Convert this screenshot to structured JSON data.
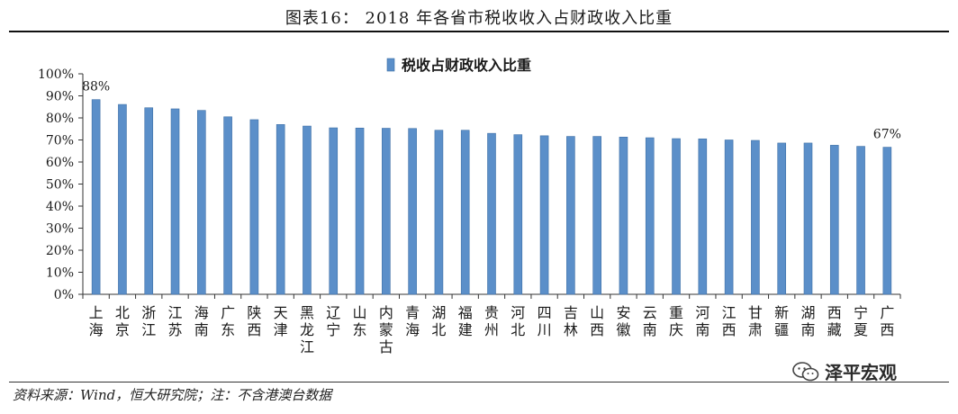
{
  "figure": {
    "title": "图表16：    2018 年各省市税收收入占财政收入比重",
    "source": "资料来源：Wind，恒大研究院；注：不含港澳台数据",
    "watermark": "泽平宏观"
  },
  "colors": {
    "bar": "#5b8fc9",
    "bar_edge": "#3d6fa6",
    "axis": "#333333"
  },
  "chart_data": {
    "type": "bar",
    "legend": "税收占财政收入比重",
    "legend_position": "top-center",
    "ylim": [
      0,
      100
    ],
    "yticks": [
      "0%",
      "10%",
      "20%",
      "30%",
      "40%",
      "50%",
      "60%",
      "70%",
      "80%",
      "90%",
      "100%"
    ],
    "categories": [
      "上海",
      "北京",
      "浙江",
      "江苏",
      "海南",
      "广东",
      "陕西",
      "天津",
      "黑龙江",
      "辽宁",
      "山东",
      "内蒙古",
      "青海",
      "湖北",
      "福建",
      "贵州",
      "河北",
      "四川",
      "吉林",
      "山西",
      "安徽",
      "云南",
      "重庆",
      "河南",
      "江西",
      "甘肃",
      "新疆",
      "湖南",
      "西藏",
      "宁夏",
      "广西"
    ],
    "values": [
      88.3,
      86.1,
      84.6,
      84.1,
      83.4,
      80.5,
      79.2,
      77.0,
      76.3,
      75.5,
      75.4,
      75.3,
      75.2,
      74.4,
      74.4,
      73.0,
      72.4,
      71.9,
      71.6,
      71.6,
      71.3,
      71.0,
      70.6,
      70.5,
      70.0,
      69.8,
      68.6,
      68.6,
      67.6,
      67.1,
      66.7
    ],
    "annotations": [
      {
        "category": "上海",
        "text": "88%"
      },
      {
        "category": "广西",
        "text": "67%"
      }
    ],
    "grid": false
  }
}
